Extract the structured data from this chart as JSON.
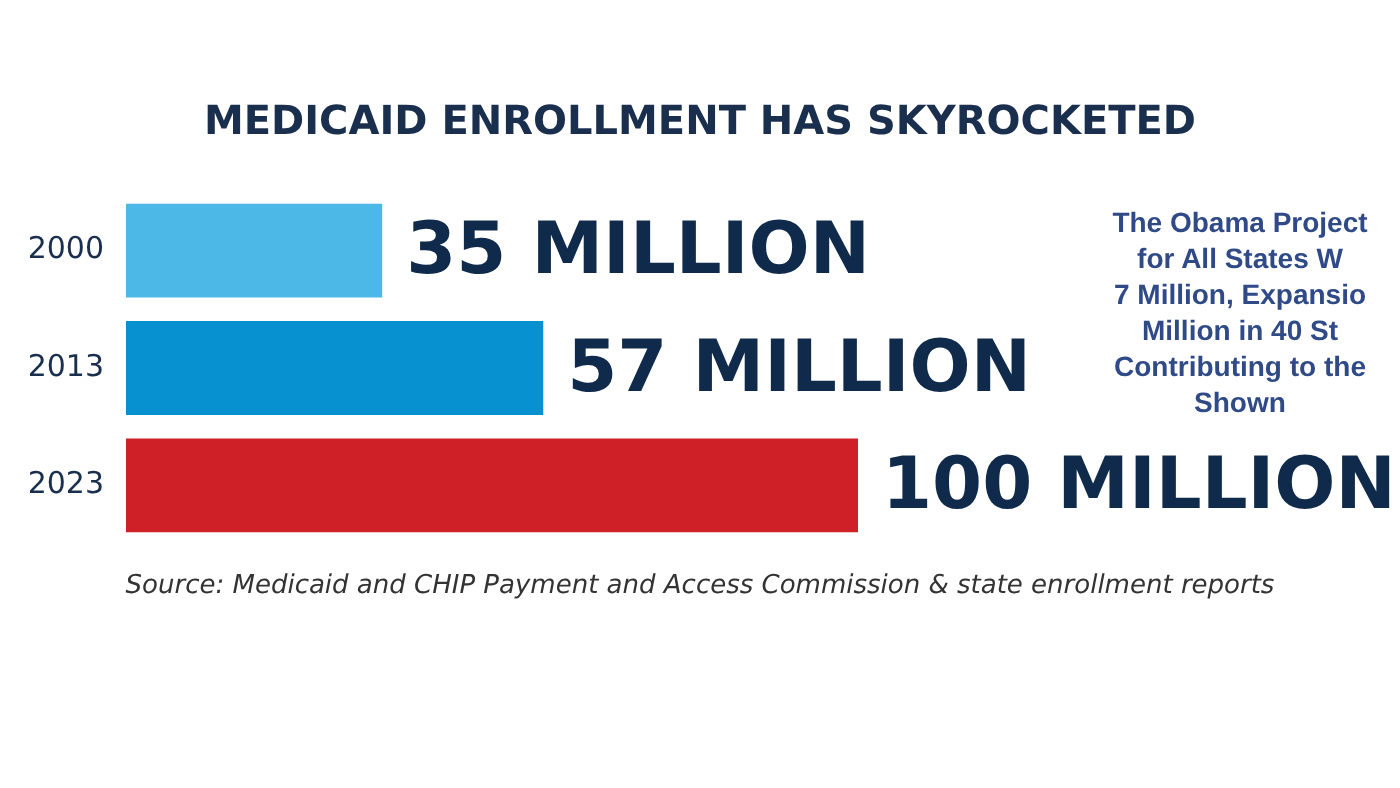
{
  "chart_data": {
    "type": "bar",
    "orientation": "horizontal",
    "title": "MEDICAID ENROLLMENT HAS SKYROCKETED",
    "categories": [
      "2000",
      "2013",
      "2023"
    ],
    "values": [
      35,
      57,
      100
    ],
    "colors": [
      "#4bb8e8",
      "#0891d1",
      "#d02027"
    ],
    "value_labels": [
      "35 MILLION",
      "57 MILLION",
      "100 MILLION"
    ],
    "tick_labels": "y",
    "grid": false,
    "legend": false,
    "annotations": [
      "Source: Medicaid and CHIP Payment and Access Commission & state enrollment reports",
      "The Obama Project\nfor All States W\n7 Million, Expansio\nMillion in 40 St\nContributing to the\nShown"
    ]
  }
}
